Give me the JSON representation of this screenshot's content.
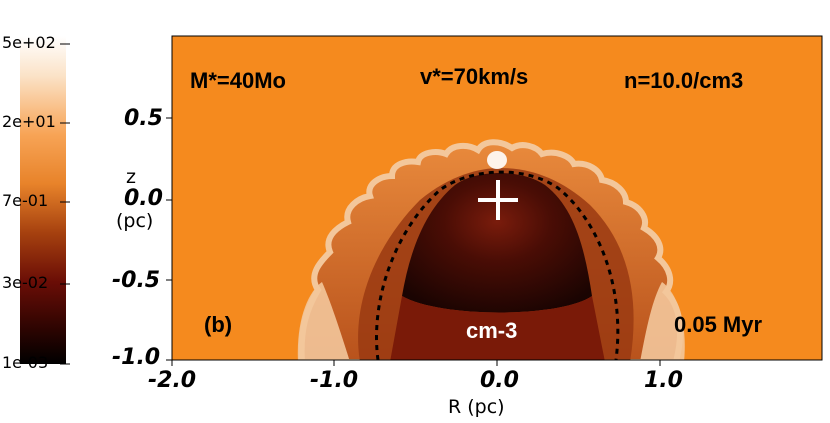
{
  "colorbar": {
    "labels": [
      "5e+02",
      "2e+01",
      "7e-01",
      "3e-02",
      "1e-03"
    ],
    "unit_label": "cm-3"
  },
  "plot": {
    "background_color": "#f58a1e",
    "annotations": {
      "mass": "M*=40Mo",
      "velocity": "v*=70km/s",
      "density": "n=10.0/cm3",
      "panel": "(b)",
      "time": "0.05 Myr"
    },
    "y_axis": {
      "title_line1": "z",
      "title_line2": "(pc)",
      "tick_labels": [
        "0.5",
        "0.0",
        "-0.5",
        "-1.0"
      ]
    },
    "x_axis": {
      "title": "R (pc)",
      "tick_labels": [
        "-2.0",
        "-1.0",
        "0.0",
        "1.0"
      ]
    },
    "star_marker": "plus-icon",
    "contour": "dashed-black"
  }
}
